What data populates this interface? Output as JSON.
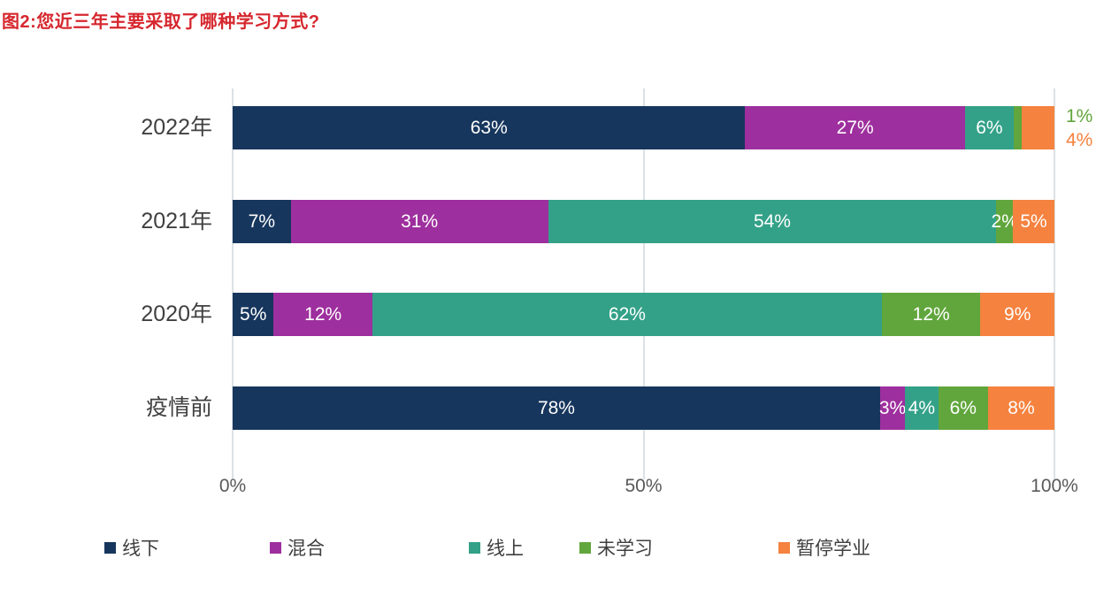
{
  "title": "图2:您近三年主要采取了哪种学习方式?",
  "chart_data": {
    "type": "bar",
    "orientation": "horizontal",
    "stacked": true,
    "title": "图2:您近三年主要采取了哪种学习方式?",
    "categories": [
      "2022年",
      "2021年",
      "2020年",
      "疫情前"
    ],
    "series": [
      {
        "name": "线下",
        "color": "#17365D",
        "values": [
          63,
          7,
          5,
          78
        ]
      },
      {
        "name": "混合",
        "color": "#9E2F9E",
        "values": [
          27,
          31,
          12,
          3
        ]
      },
      {
        "name": "线上",
        "color": "#33A188",
        "values": [
          6,
          54,
          62,
          4
        ]
      },
      {
        "name": "未学习",
        "color": "#61A63C",
        "values": [
          1,
          2,
          12,
          6
        ]
      },
      {
        "name": "暂停学业",
        "color": "#F5823F",
        "values": [
          4,
          5,
          9,
          8
        ]
      }
    ],
    "value_suffix": "%",
    "xlim": [
      0,
      100
    ],
    "x_ticks": [
      {
        "value": 0,
        "label": "0%"
      },
      {
        "value": 50,
        "label": "50%"
      },
      {
        "value": 100,
        "label": "100%"
      }
    ],
    "grid": true,
    "legend_position": "bottom",
    "inside_label_color": "#FFFFFF",
    "outside_labels": {
      "row_index": 0,
      "series_indexes": [
        3,
        4
      ],
      "items": [
        {
          "text": "1%",
          "color": "#61A63C"
        },
        {
          "text": "4%",
          "color": "#F5823F"
        }
      ]
    }
  },
  "styles": {
    "title_color": "#D6272E",
    "grid_color": "#DCE1E4",
    "axis_text_color": "#595959",
    "category_text_color": "#404040",
    "legend_text_color": "#3F3F3F",
    "background": "#FFFFFF"
  }
}
